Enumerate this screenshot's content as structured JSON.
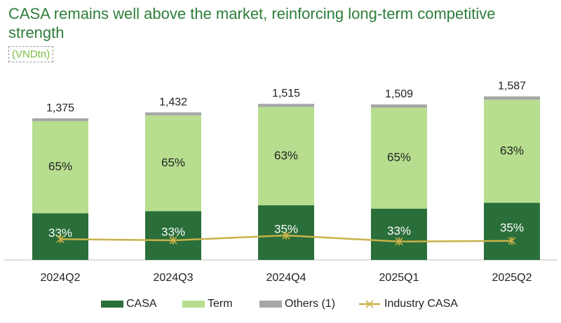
{
  "title": "CASA remains well above the market, reinforcing long-term competitive strength",
  "unit": "(VNDtn)",
  "chart_data": {
    "type": "bar",
    "stacked": true,
    "categories": [
      "2024Q2",
      "2024Q3",
      "2024Q4",
      "2025Q1",
      "2025Q2"
    ],
    "totals": [
      1375,
      1432,
      1515,
      1509,
      1587
    ],
    "total_labels": [
      "1,375",
      "1,432",
      "1,515",
      "1,509",
      "1,587"
    ],
    "series": [
      {
        "name": "CASA",
        "color": "#2a6e3a",
        "share_pct": [
          33,
          33,
          35,
          33,
          35
        ],
        "labels": [
          "33%",
          "33%",
          "35%",
          "33%",
          "35%"
        ]
      },
      {
        "name": "Term",
        "color": "#b6de8e",
        "share_pct": [
          65,
          65,
          63,
          65,
          63
        ],
        "labels": [
          "65%",
          "65%",
          "63%",
          "65%",
          "63%"
        ]
      },
      {
        "name": "Others (1)",
        "color": "#a6a6a6",
        "share_pct": [
          2,
          2,
          2,
          2,
          2
        ]
      }
    ],
    "line_series": {
      "name": "Industry CASA",
      "color": "#c9b24a",
      "values": [
        28.5,
        28.0,
        30.0,
        27.5,
        27.8
      ]
    },
    "ylim": [
      0,
      1700
    ],
    "legend": [
      "CASA",
      "Term",
      "Others (1)",
      "Industry CASA"
    ],
    "legend_position": "bottom"
  }
}
